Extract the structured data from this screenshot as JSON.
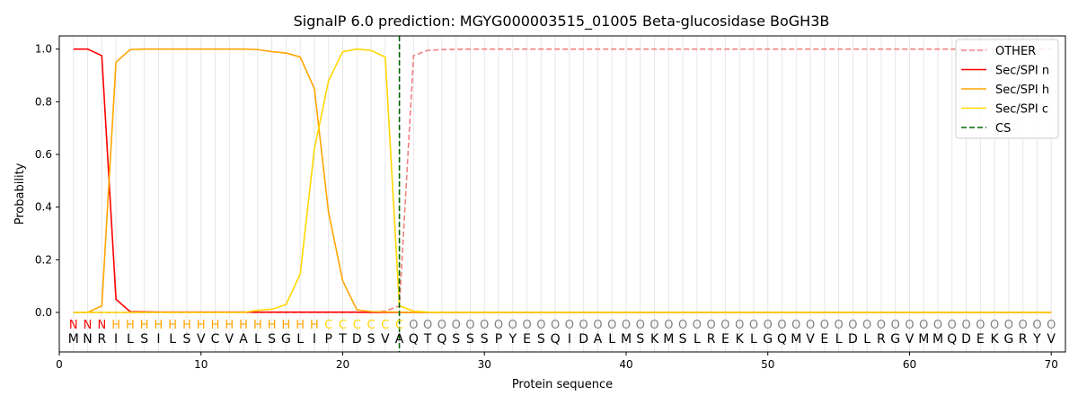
{
  "chart_data": {
    "type": "line",
    "title": "SignalP 6.0 prediction: MGYG000003515_01005 Beta-glucosidase BoGH3B",
    "xlabel": "Protein sequence",
    "ylabel": "Probability",
    "xlim": [
      0,
      71
    ],
    "ylim": [
      -0.15,
      1.05
    ],
    "x_ticks": [
      0,
      10,
      20,
      30,
      40,
      50,
      60,
      70
    ],
    "y_ticks": [
      0.0,
      0.2,
      0.4,
      0.6,
      0.8,
      1.0
    ],
    "x_tick_labels": [
      "0",
      "10",
      "20",
      "30",
      "40",
      "50",
      "60",
      "70"
    ],
    "y_tick_labels": [
      "0.0",
      "0.2",
      "0.4",
      "0.6",
      "0.8",
      "1.0"
    ],
    "legend_position": "top-right",
    "grid": "vertical lines at each residue",
    "sequence": [
      "M",
      "N",
      "R",
      "I",
      "L",
      "S",
      "I",
      "L",
      "S",
      "V",
      "C",
      "V",
      "A",
      "L",
      "S",
      "G",
      "L",
      "I",
      "P",
      "T",
      "D",
      "S",
      "V",
      "A",
      "Q",
      "T",
      "Q",
      "S",
      "S",
      "S",
      "P",
      "Y",
      "E",
      "S",
      "Q",
      "I",
      "D",
      "A",
      "L",
      "M",
      "S",
      "K",
      "M",
      "S",
      "L",
      "R",
      "E",
      "K",
      "L",
      "G",
      "Q",
      "M",
      "V",
      "E",
      "L",
      "D",
      "L",
      "R",
      "G",
      "V",
      "M",
      "M",
      "Q",
      "D",
      "E",
      "K",
      "G",
      "R",
      "Y",
      "V"
    ],
    "region_labels": [
      "N",
      "N",
      "N",
      "H",
      "H",
      "H",
      "H",
      "H",
      "H",
      "H",
      "H",
      "H",
      "H",
      "H",
      "H",
      "H",
      "H",
      "H",
      "C",
      "C",
      "C",
      "C",
      "C",
      "C",
      "O",
      "O",
      "O",
      "O",
      "O",
      "O",
      "O",
      "O",
      "O",
      "O",
      "O",
      "O",
      "O",
      "O",
      "O",
      "O",
      "O",
      "O",
      "O",
      "O",
      "O",
      "O",
      "O",
      "O",
      "O",
      "O",
      "O",
      "O",
      "O",
      "O",
      "O",
      "O",
      "O",
      "O",
      "O",
      "O",
      "O",
      "O",
      "O",
      "O",
      "O",
      "O",
      "O",
      "O",
      "O",
      "O"
    ],
    "region_colors": {
      "N": "#ff0000",
      "H": "#ffa500",
      "C": "#ffd700",
      "O": "#808080"
    },
    "series": [
      {
        "name": "OTHER",
        "color": "#f08080",
        "style": "dashed",
        "values": [
          0,
          0,
          0,
          0,
          0,
          0,
          0,
          0,
          0,
          0,
          0,
          0,
          0,
          0,
          0,
          0,
          0,
          0,
          0,
          0,
          0,
          0,
          0.005,
          0.025,
          0.975,
          0.995,
          0.998,
          0.999,
          1,
          1,
          1,
          1,
          1,
          1,
          1,
          1,
          1,
          1,
          1,
          1,
          1,
          1,
          1,
          1,
          1,
          1,
          1,
          1,
          1,
          1,
          1,
          1,
          1,
          1,
          1,
          1,
          1,
          1,
          1,
          1,
          1,
          1,
          1,
          1,
          1,
          1,
          1,
          1,
          1,
          1
        ]
      },
      {
        "name": "Sec/SPI n",
        "color": "#ff0000",
        "style": "solid",
        "values": [
          1.0,
          1.0,
          0.975,
          0.05,
          0.003,
          0.002,
          0.001,
          0.001,
          0.001,
          0.001,
          0.001,
          0.001,
          0.001,
          0.001,
          0.001,
          0.001,
          0.001,
          0.001,
          0.001,
          0.001,
          0.001,
          0,
          0,
          0,
          0,
          0,
          0,
          0,
          0,
          0,
          0,
          0,
          0,
          0,
          0,
          0,
          0,
          0,
          0,
          0,
          0,
          0,
          0,
          0,
          0,
          0,
          0,
          0,
          0,
          0,
          0,
          0,
          0,
          0,
          0,
          0,
          0,
          0,
          0,
          0,
          0,
          0,
          0,
          0,
          0,
          0,
          0,
          0,
          0,
          0
        ]
      },
      {
        "name": "Sec/SPI h",
        "color": "#ffa500",
        "style": "solid",
        "values": [
          0,
          0,
          0.025,
          0.95,
          0.998,
          1.0,
          1.0,
          1.0,
          1.0,
          1.0,
          1.0,
          1.0,
          1.0,
          0.998,
          0.99,
          0.985,
          0.97,
          0.85,
          0.38,
          0.12,
          0.01,
          0.003,
          0.002,
          0.001,
          0,
          0,
          0,
          0,
          0,
          0,
          0,
          0,
          0,
          0,
          0,
          0,
          0,
          0,
          0,
          0,
          0,
          0,
          0,
          0,
          0,
          0,
          0,
          0,
          0,
          0,
          0,
          0,
          0,
          0,
          0,
          0,
          0,
          0,
          0,
          0,
          0,
          0,
          0,
          0,
          0,
          0,
          0,
          0,
          0,
          0
        ]
      },
      {
        "name": "Sec/SPI c",
        "color": "#ffd700",
        "style": "solid",
        "values": [
          0,
          0,
          0,
          0,
          0,
          0,
          0,
          0,
          0,
          0,
          0,
          0,
          0,
          0.008,
          0.012,
          0.03,
          0.145,
          0.62,
          0.88,
          0.99,
          1.0,
          0.995,
          0.97,
          0.025,
          0.005,
          0.001,
          0,
          0,
          0,
          0,
          0,
          0,
          0,
          0,
          0,
          0,
          0,
          0,
          0,
          0,
          0,
          0,
          0,
          0,
          0,
          0,
          0,
          0,
          0,
          0,
          0,
          0,
          0,
          0,
          0,
          0,
          0,
          0,
          0,
          0,
          0,
          0,
          0,
          0,
          0,
          0,
          0,
          0,
          0,
          0
        ]
      }
    ],
    "cs": {
      "name": "CS",
      "x": 24,
      "color": "#006400",
      "style": "dashed"
    }
  }
}
